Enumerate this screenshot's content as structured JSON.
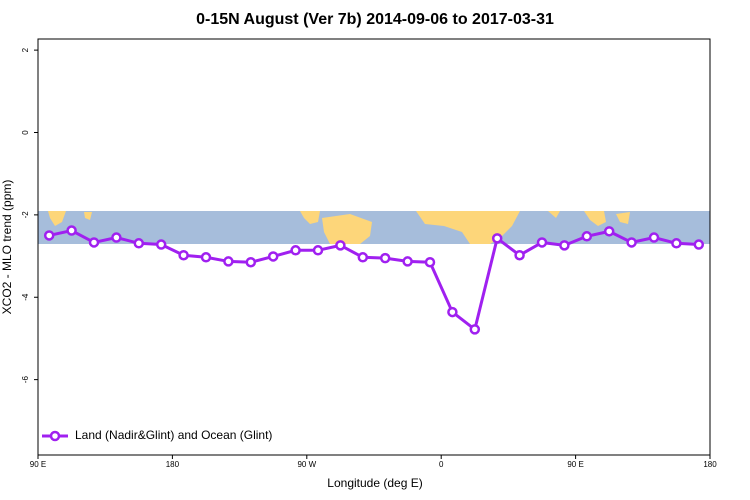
{
  "chart_data": {
    "type": "line",
    "title": "0-15N August (Ver 7b)   2014-09-06 to 2017-03-31",
    "x_label": "Longitude (deg E)",
    "y_label": "XCO2 - MLO trend (ppm)",
    "x": [
      97.5,
      112.5,
      127.5,
      142.5,
      157.5,
      172.5,
      187.5,
      202.5,
      217.5,
      232.5,
      247.5,
      262.5,
      277.5,
      292.5,
      307.5,
      322.5,
      337.5,
      352.5,
      367.5,
      382.5,
      397.5,
      412.5,
      427.5,
      442.5,
      457.5,
      472.5,
      487.5,
      502.5,
      517.5,
      532.5
    ],
    "series": [
      {
        "name": "Land (Nadir&Glint) and Ocean (Glint)",
        "color": "#a020f0",
        "values": [
          -2.5,
          -2.38,
          -2.67,
          -2.55,
          -2.69,
          -2.72,
          -2.98,
          -3.03,
          -3.13,
          -3.15,
          -3.01,
          -2.86,
          -2.86,
          -2.74,
          -3.03,
          -3.05,
          -3.13,
          -3.15,
          -4.36,
          -4.78,
          -2.57,
          -2.98,
          -2.67,
          -2.74,
          -2.52,
          -2.4,
          -2.67,
          -2.55,
          -2.69,
          -2.72
        ]
      }
    ],
    "xlim": [
      90,
      540
    ],
    "xticks": [
      {
        "value": 90,
        "label": "90 E"
      },
      {
        "value": 180,
        "label": "180"
      },
      {
        "value": 270,
        "label": "90 W"
      },
      {
        "value": 360,
        "label": "0"
      },
      {
        "value": 450,
        "label": "90 E"
      },
      {
        "value": 540,
        "label": "180"
      }
    ],
    "ylim": [
      -7.83,
      2.27
    ],
    "yticks": [
      -6,
      -4,
      -2,
      0,
      2
    ],
    "legend": "lower left"
  }
}
